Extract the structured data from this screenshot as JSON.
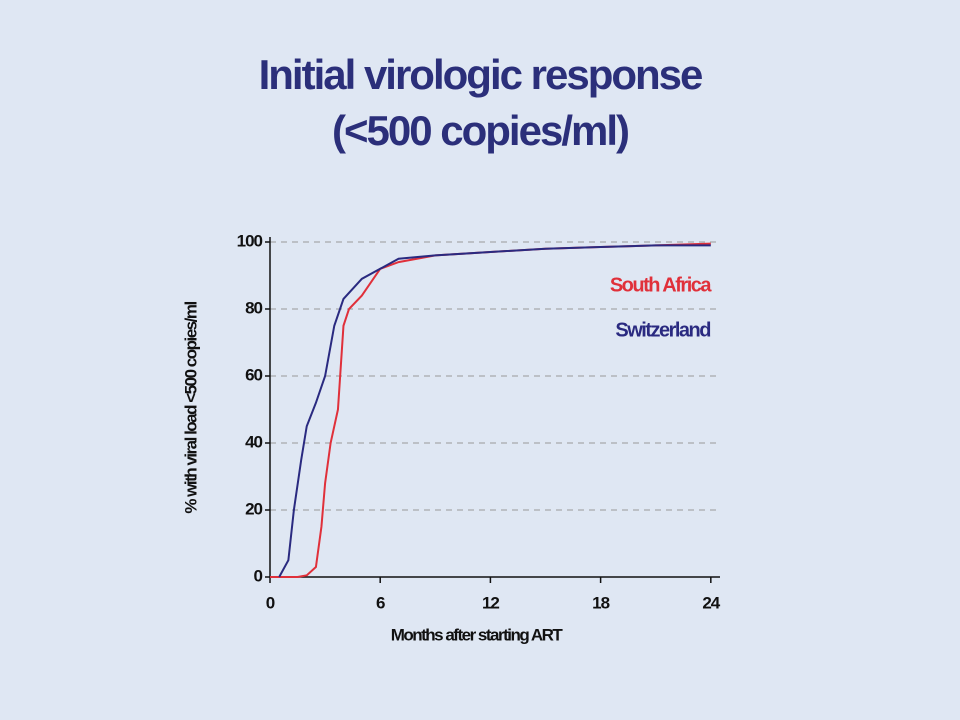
{
  "chart_data": {
    "type": "line",
    "title": "Initial virologic response",
    "subtitle": "(<500 copies/ml)",
    "x_label": "Months after starting ART",
    "y_label": "% with viral load <500 copies/ml",
    "xlim": [
      0,
      24.5
    ],
    "xticks": [
      0,
      6,
      12,
      18,
      24
    ],
    "ylim": [
      0,
      100
    ],
    "yticks": [
      0,
      20,
      40,
      60,
      80,
      100
    ],
    "grid": true,
    "series": [
      {
        "name": "South Africa",
        "color": "#e0303a",
        "x": [
          0,
          1.5,
          2,
          2.5,
          2.8,
          3,
          3.3,
          3.7,
          4,
          4.3,
          5,
          5.5,
          6,
          7,
          9,
          12,
          15,
          18,
          21,
          24
        ],
        "values": [
          0,
          0,
          0.5,
          3,
          15,
          28,
          40,
          50,
          75,
          80,
          84,
          88,
          92,
          94,
          96,
          97,
          98,
          98.5,
          99,
          99.5
        ]
      },
      {
        "name": "Switzerland",
        "color": "#2a2a80",
        "x": [
          0.5,
          1,
          1.3,
          1.7,
          2,
          2.5,
          3,
          3.5,
          4,
          5,
          6,
          7,
          9,
          12,
          15,
          18,
          21,
          24
        ],
        "values": [
          0,
          5,
          20,
          35,
          45,
          52,
          60,
          75,
          83,
          89,
          92,
          95,
          96,
          97,
          98,
          98.5,
          99,
          99
        ]
      }
    ]
  }
}
